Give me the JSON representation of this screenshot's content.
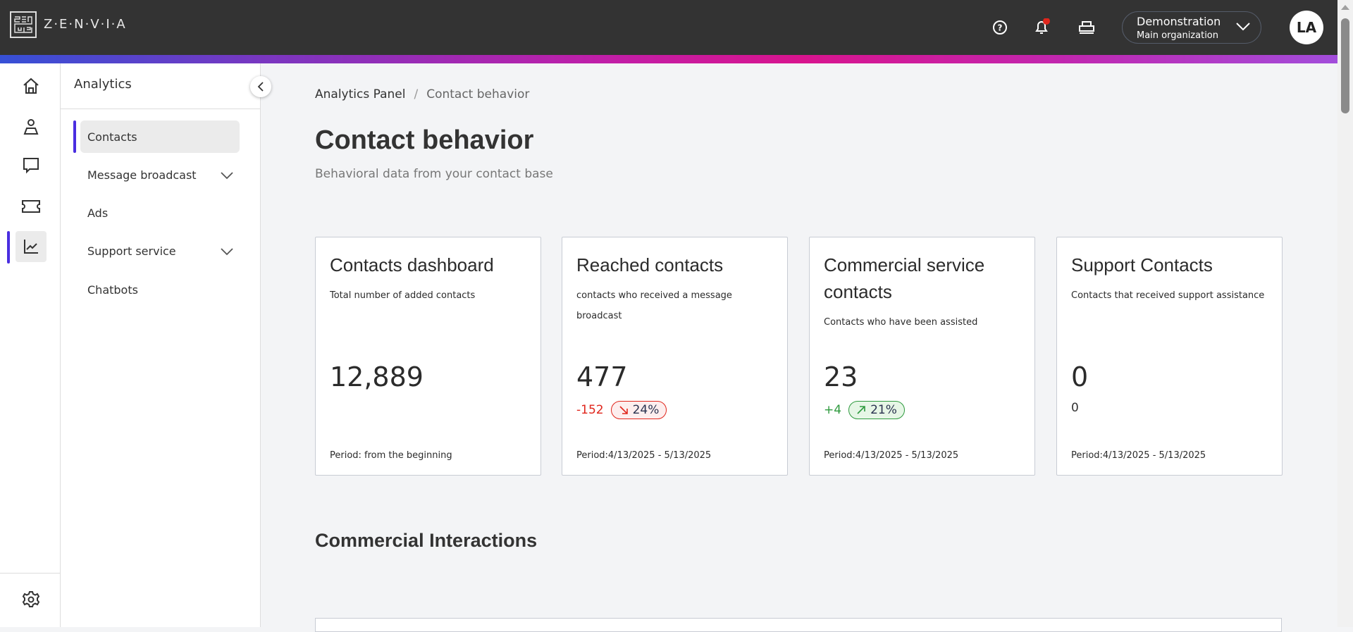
{
  "header": {
    "brand": "Z·E·N·V·I·A",
    "org_name": "Demonstration",
    "org_sub": "Main organization",
    "avatar": "LA",
    "notification_color": "#e0261c"
  },
  "rail": {
    "items": [
      {
        "icon": "home-icon"
      },
      {
        "icon": "user-icon"
      },
      {
        "icon": "chat-icon"
      },
      {
        "icon": "ticket-icon"
      },
      {
        "icon": "analytics-chart-icon",
        "active": true
      }
    ],
    "settings_icon": "gear-icon"
  },
  "sidebar": {
    "title": "Analytics",
    "items": [
      {
        "label": "Contacts",
        "active": true
      },
      {
        "label": "Message broadcast",
        "expandable": true
      },
      {
        "label": "Ads"
      },
      {
        "label": "Support service",
        "expandable": true
      },
      {
        "label": "Chatbots"
      }
    ]
  },
  "breadcrumb": {
    "parent": "Analytics Panel",
    "separator": "/",
    "current": "Contact behavior"
  },
  "page": {
    "title": "Contact behavior",
    "subtitle": "Behavioral data from your contact base"
  },
  "cards": [
    {
      "title": "Contacts dashboard",
      "desc": "Total number of added contacts",
      "value": "12,889",
      "period": "Period: from the beginning"
    },
    {
      "title": "Reached contacts",
      "desc": "contacts who received a message broadcast",
      "value": "477",
      "delta": "-152",
      "badge": "24%",
      "trend": "down",
      "period": "Period:4/13/2025 - 5/13/2025"
    },
    {
      "title": "Commercial service contacts",
      "desc": "Contacts who have been assisted",
      "value": "23",
      "delta": "+4",
      "badge": "21%",
      "trend": "up",
      "period": "Period:4/13/2025 - 5/13/2025"
    },
    {
      "title": "Support Contacts",
      "desc": "Contacts that received support assistance",
      "value": "0",
      "sub": "0",
      "period": "Period:4/13/2025 - 5/13/2025"
    }
  ],
  "section": {
    "title": "Commercial Interactions"
  },
  "colors": {
    "accent": "#4a2ee0",
    "negative": "#e0261c",
    "positive": "#2e9a3e"
  }
}
